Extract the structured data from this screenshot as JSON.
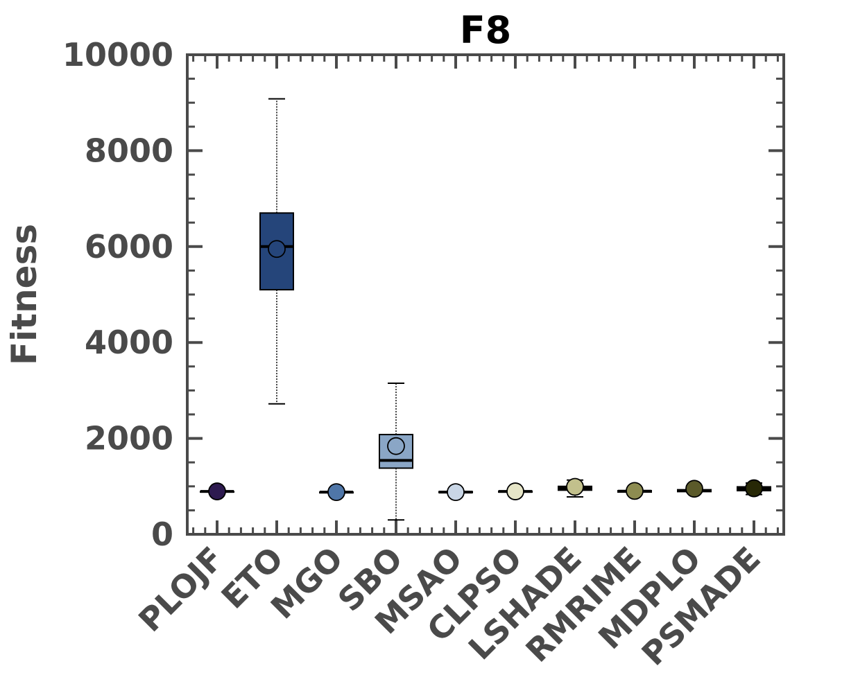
{
  "chart_data": {
    "type": "box",
    "title": "F8",
    "xlabel": "",
    "ylabel": "Fitness",
    "ylim": [
      0,
      10000
    ],
    "yticks": [
      "0",
      "2000",
      "4000",
      "6000",
      "8000",
      "10000"
    ],
    "grid": false,
    "categories": [
      "PLOJF",
      "ETO",
      "MGO",
      "SBO",
      "MSAO",
      "CLPSO",
      "LSHADE",
      "RMRIME",
      "MDPLO",
      "PSMADE"
    ],
    "series": [
      {
        "whisker_low": 895,
        "q1": 895,
        "median": 895,
        "q3": 895,
        "whisker_high": 895,
        "mean": 895,
        "color": "#2d1a4f"
      },
      {
        "whisker_low": 2720,
        "q1": 5100,
        "median": 6000,
        "q3": 6700,
        "whisker_high": 9080,
        "mean": 5950,
        "color": "#25457a"
      },
      {
        "whisker_low": 880,
        "q1": 880,
        "median": 880,
        "q3": 880,
        "whisker_high": 880,
        "mean": 880,
        "color": "#4f76a8"
      },
      {
        "whisker_low": 300,
        "q1": 1380,
        "median": 1540,
        "q3": 2080,
        "whisker_high": 3150,
        "mean": 1840,
        "color": "#8aa6c6"
      },
      {
        "whisker_low": 870,
        "q1": 870,
        "median": 880,
        "q3": 890,
        "whisker_high": 890,
        "mean": 880,
        "color": "#c9d6e6"
      },
      {
        "whisker_low": 880,
        "q1": 880,
        "median": 895,
        "q3": 900,
        "whisker_high": 900,
        "mean": 895,
        "color": "#e6e5c7"
      },
      {
        "whisker_low": 780,
        "q1": 920,
        "median": 960,
        "q3": 1000,
        "whisker_high": 1130,
        "mean": 990,
        "color": "#c2c08c"
      },
      {
        "whisker_low": 880,
        "q1": 880,
        "median": 900,
        "q3": 910,
        "whisker_high": 910,
        "mean": 905,
        "color": "#8d8c51"
      },
      {
        "whisker_low": 880,
        "q1": 890,
        "median": 910,
        "q3": 930,
        "whisker_high": 940,
        "mean": 950,
        "color": "#5b5a2a"
      },
      {
        "whisker_low": 830,
        "q1": 910,
        "median": 950,
        "q3": 990,
        "whisker_high": 1070,
        "mean": 960,
        "color": "#272806"
      }
    ]
  }
}
